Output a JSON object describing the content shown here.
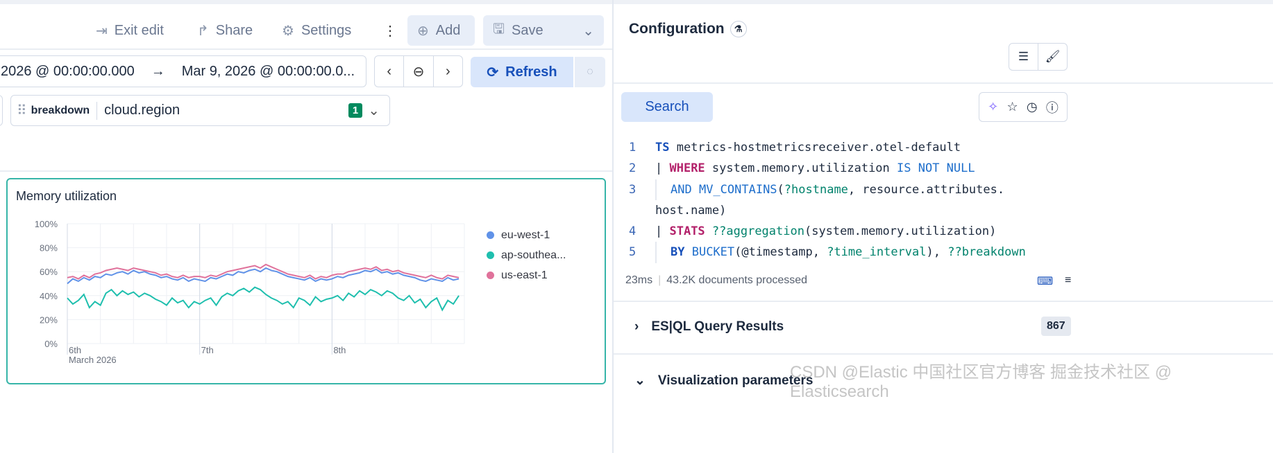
{
  "header": {
    "exit_edit": "Exit edit",
    "share": "Share",
    "settings": "Settings",
    "add": "Add",
    "save": "Save"
  },
  "time": {
    "start": "2026 @ 00:00:00.000",
    "arrow": "→",
    "end": "Mar 9, 2026 @ 00:00:00.0...",
    "refresh": "Refresh"
  },
  "control": {
    "label": "breakdown",
    "value": "cloud.region",
    "count": "1"
  },
  "panel": {
    "title": "Memory utilization"
  },
  "chart_data": {
    "type": "line",
    "title": "Memory utilization",
    "y_ticks": [
      "0%",
      "20%",
      "40%",
      "60%",
      "80%",
      "100%"
    ],
    "ylim": [
      0,
      100
    ],
    "x_ticks": [
      "6th",
      "7th",
      "8th"
    ],
    "x_sublabel": "March 2026",
    "x_range": [
      "2026-03-06T00:00",
      "2026-03-08T23:00"
    ],
    "x_interval": "1h",
    "grid": true,
    "legend": "right",
    "series": [
      {
        "name": "eu-west-1",
        "color": "#6092e8",
        "values": [
          50,
          54,
          52,
          55,
          53,
          56,
          55,
          58,
          57,
          59,
          60,
          58,
          61,
          59,
          60,
          58,
          57,
          55,
          56,
          54,
          53,
          55,
          52,
          54,
          53,
          52,
          55,
          54,
          56,
          58,
          57,
          60,
          59,
          61,
          62,
          60,
          63,
          61,
          60,
          58,
          56,
          55,
          54,
          53,
          55,
          52,
          54,
          53,
          54,
          56,
          55,
          57,
          58,
          59,
          61,
          60,
          62,
          59,
          60,
          58,
          59,
          57,
          56,
          55,
          53,
          52,
          54,
          53,
          52,
          55,
          53,
          54
        ]
      },
      {
        "name": "ap-southea...",
        "color": "#1fbfae",
        "values": [
          38,
          33,
          36,
          41,
          30,
          35,
          32,
          42,
          45,
          40,
          44,
          41,
          43,
          39,
          42,
          40,
          37,
          35,
          32,
          38,
          34,
          36,
          30,
          35,
          33,
          36,
          38,
          32,
          39,
          42,
          40,
          44,
          46,
          43,
          47,
          45,
          41,
          38,
          36,
          33,
          35,
          30,
          38,
          36,
          32,
          39,
          35,
          37,
          38,
          40,
          36,
          42,
          39,
          44,
          41,
          45,
          43,
          40,
          44,
          42,
          38,
          36,
          40,
          34,
          37,
          30,
          35,
          38,
          28,
          36,
          33,
          40
        ]
      },
      {
        "name": "us-east-1",
        "color": "#e0729b",
        "values": [
          55,
          56,
          54,
          57,
          55,
          58,
          59,
          61,
          62,
          63,
          62,
          61,
          63,
          62,
          61,
          60,
          59,
          57,
          58,
          56,
          55,
          57,
          55,
          56,
          56,
          55,
          57,
          56,
          58,
          60,
          61,
          62,
          63,
          64,
          65,
          63,
          66,
          64,
          62,
          60,
          58,
          57,
          56,
          55,
          57,
          54,
          56,
          55,
          57,
          58,
          58,
          60,
          61,
          62,
          63,
          62,
          64,
          61,
          62,
          60,
          61,
          59,
          58,
          57,
          56,
          55,
          57,
          55,
          54,
          57,
          56,
          55
        ]
      }
    ]
  },
  "config": {
    "title": "Configuration",
    "search": "Search",
    "code": {
      "l1": "1",
      "l2": "2",
      "l3": "3",
      "l4": "4",
      "l5": "5",
      "ts": "TS",
      "src": " metrics-hostmetricsreceiver.otel-default",
      "pipe": "| ",
      "where": "WHERE",
      "field": " system.memory.utilization ",
      "isnotnull": "IS NOT NULL",
      "and": "AND",
      "mvc": " MV_CONTAINS",
      "p1": "(",
      "hostname": "?hostname",
      "rest3": ", resource.attributes.",
      "wrap3": "host.name)",
      "stats": "STATS",
      "agg": " ??aggregation",
      "rest4": "(system.memory.utilization)",
      "by": "BY",
      "bucket": " BUCKET",
      "rest5": "(@timestamp, ",
      "ti": "?time_interval",
      "rest5b": "), ",
      "bd": "??breakdown"
    },
    "took": "23ms",
    "docs": "43.2K documents processed",
    "results_label": "ES|QL Query Results",
    "results_count": "867",
    "viz_label": "Visualization parameters"
  },
  "watermark": "CSDN @Elastic 中国社区官方博客 掘金技术社区 @ Elasticsearch"
}
